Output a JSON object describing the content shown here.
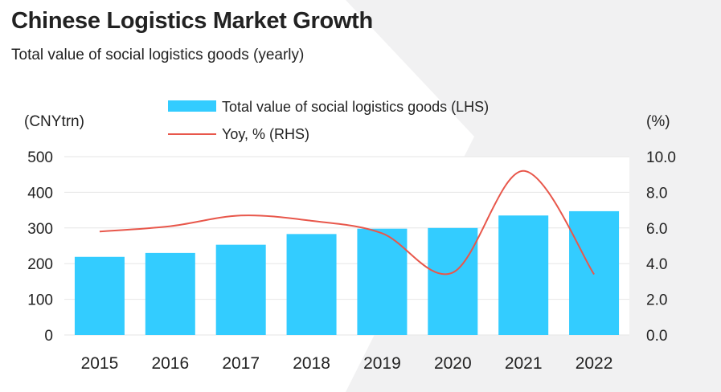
{
  "header": {
    "title": "Chinese Logistics Market Growth",
    "subtitle": "Total value of social logistics goods (yearly)"
  },
  "colors": {
    "bar": "#33CCFF",
    "line": "#E8574B",
    "grid": "#E6E6E6",
    "decor": "#F1F1F2"
  },
  "chart_data": {
    "type": "bar",
    "title": "Chinese Logistics Market Growth",
    "subtitle": "Total value of social logistics goods (yearly)",
    "categories": [
      "2015",
      "2016",
      "2017",
      "2018",
      "2019",
      "2020",
      "2021",
      "2022"
    ],
    "series": [
      {
        "name": "Total value of social logistics goods (LHS)",
        "type": "bar",
        "axis": "left",
        "values": [
          219,
          230,
          253,
          283,
          298,
          300,
          335,
          347
        ]
      },
      {
        "name": "Yoy, % (RHS)",
        "type": "line",
        "axis": "right",
        "values": [
          5.8,
          6.1,
          6.7,
          6.4,
          5.7,
          3.5,
          9.2,
          3.4
        ]
      }
    ],
    "ylabel_left": "(CNYtrn)",
    "ylabel_right": "(%)",
    "ylim_left": [
      0,
      500
    ],
    "ylim_right": [
      0,
      10
    ],
    "yticks_left": [
      "500",
      "400",
      "300",
      "200",
      "100",
      "0"
    ],
    "yticks_right": [
      "10.0",
      "8.0",
      "6.0",
      "4.0",
      "2.0",
      "0.0"
    ],
    "grid": true,
    "legend": "top-center"
  }
}
